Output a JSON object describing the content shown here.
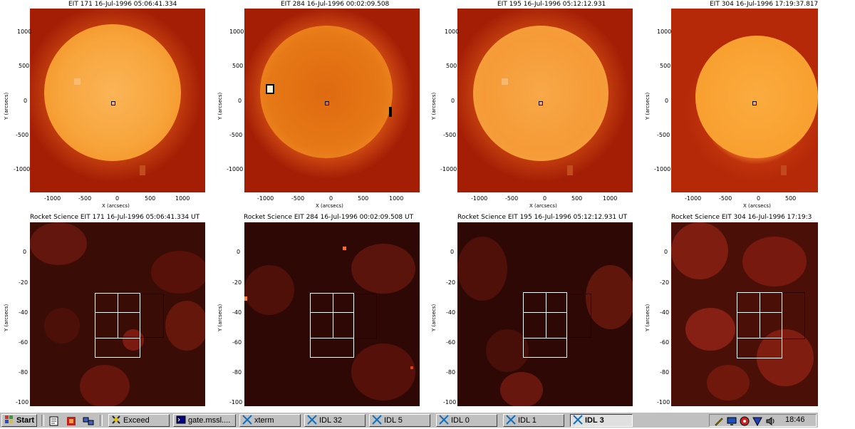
{
  "top_panels": [
    {
      "title": "EIT 171 16-Jul-1996 05:06:41.334",
      "x_ticks": [
        "-1000",
        "-500",
        "0",
        "500",
        "1000"
      ],
      "y_ticks": [
        "1000",
        "500",
        "0",
        "-500",
        "-1000"
      ],
      "xlabel": "X (arcsecs)",
      "ylabel": "Y (arcsecs)"
    },
    {
      "title": "EIT 284 16-Jul-1996 00:02:09.508",
      "x_ticks": [
        "-1000",
        "-500",
        "0",
        "500",
        "1000"
      ],
      "y_ticks": [
        "1000",
        "500",
        "0",
        "-500",
        "-1000"
      ],
      "xlabel": "X (arcsecs)",
      "ylabel": "Y (arcsecs)"
    },
    {
      "title": "EIT 195 16-Jul-1996 05:12:12.931",
      "x_ticks": [
        "-1000",
        "-500",
        "0",
        "500",
        "1000"
      ],
      "y_ticks": [
        "1000",
        "500",
        "0",
        "-500",
        "-1000"
      ],
      "xlabel": "X (arcsecs)",
      "ylabel": "Y (arcsecs)"
    },
    {
      "title": "EIT 304 16-Jul-1996 17:19:37.817",
      "x_ticks": [
        "-1000",
        "-500",
        "0",
        "500"
      ],
      "y_ticks": [
        "1000",
        "500",
        "0",
        "-500",
        "-1000"
      ],
      "xlabel": "X (arcsecs)",
      "ylabel": "Y (arcsecs)"
    }
  ],
  "bottom_panels": [
    {
      "title": "Rocket Science EIT 171 16-Jul-1996 05:06:41.334 UT",
      "y_ticks": [
        "0",
        "-20",
        "-40",
        "-60",
        "-80",
        "-100"
      ],
      "ylabel": "Y (arcsecs)"
    },
    {
      "title": "Rocket Science EIT 284 16-Jul-1996 00:02:09.508 UT",
      "y_ticks": [
        "0",
        "-20",
        "-40",
        "-60",
        "-80",
        "-100"
      ],
      "ylabel": "Y (arcsecs)"
    },
    {
      "title": "Rocket Science EIT 195 16-Jul-1996 05:12:12.931 UT",
      "y_ticks": [
        "0",
        "-20",
        "-40",
        "-60",
        "-80",
        "-100"
      ],
      "ylabel": "Y (arcsecs)"
    },
    {
      "title": "Rocket Science EIT 304 16-Jul-1996 17:19:3",
      "y_ticks": [
        "0",
        "-20",
        "-40",
        "-60",
        "-80",
        "-100"
      ],
      "ylabel": "Y (arcsecs)"
    }
  ],
  "taskbar": {
    "start_label": "Start",
    "buttons": [
      {
        "label": "Exceed",
        "icon": "exceed-icon"
      },
      {
        "label": "gate.mssl....",
        "icon": "terminal-icon"
      },
      {
        "label": "xterm",
        "icon": "x-icon"
      },
      {
        "label": "IDL 32",
        "icon": "x-icon"
      },
      {
        "label": "IDL 5",
        "icon": "x-icon"
      },
      {
        "label": "IDL 0",
        "icon": "x-icon"
      },
      {
        "label": "IDL 1",
        "icon": "x-icon"
      },
      {
        "label": "IDL 3",
        "icon": "x-icon",
        "active": true
      }
    ],
    "clock": "18:46"
  },
  "colors": {
    "sun_bg": "#a41e06",
    "sun_disk": "#f59a2e",
    "zoom_bg": "#3a0c06",
    "taskbar": "#c0c0c0"
  }
}
